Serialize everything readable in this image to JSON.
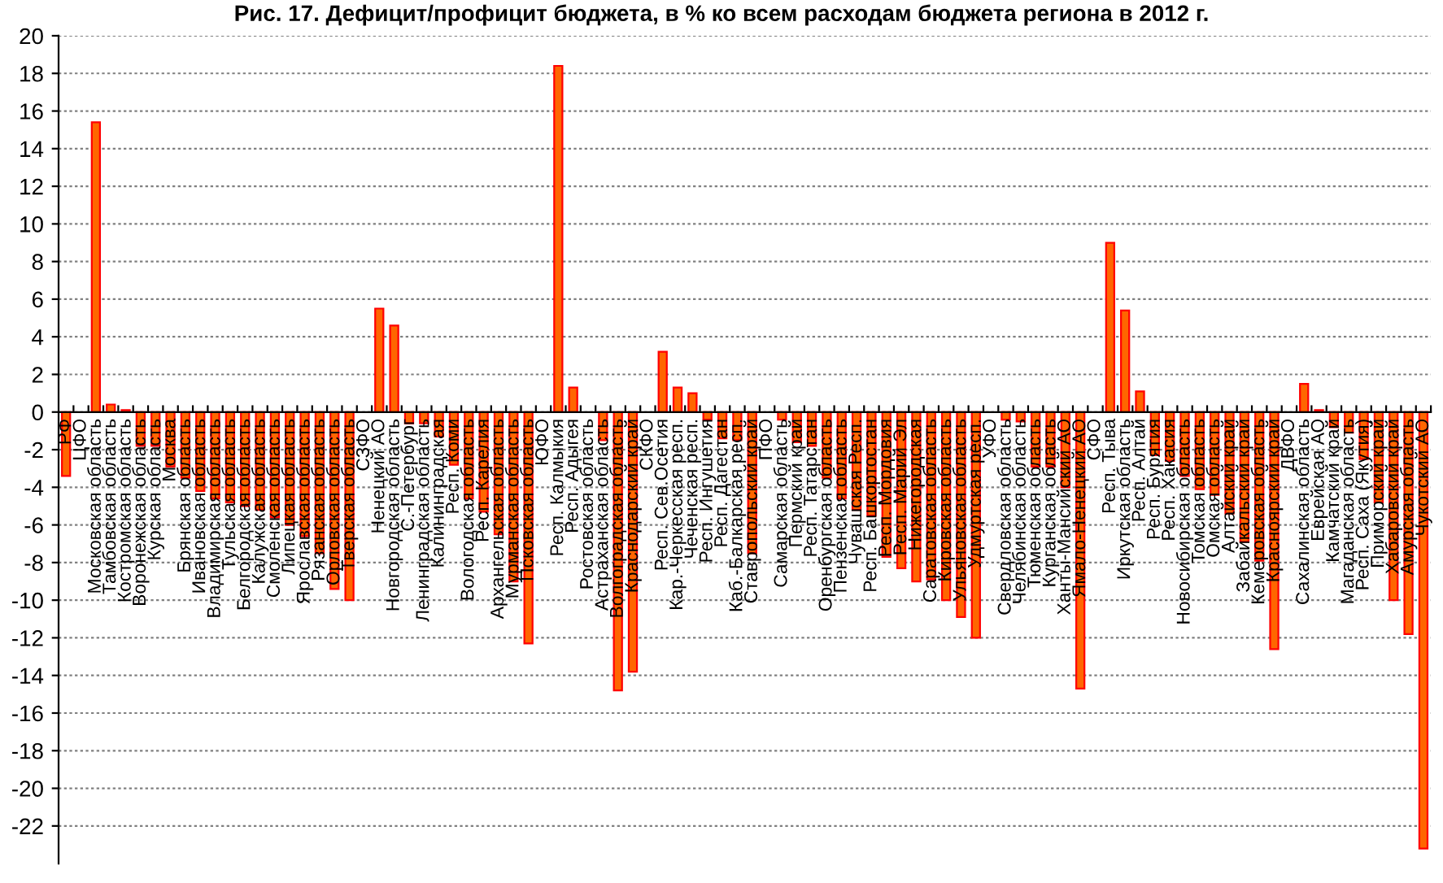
{
  "chart_data": {
    "type": "bar",
    "title": "Рис. 17. Дефицит/профицит бюджета, в % ко всем расходам бюджета региона в 2012 г.",
    "categories": [
      "РФ",
      "ЦФО",
      "Московская область",
      "Тамбовская область",
      "Костромская область",
      "Воронежская область",
      "Курская область",
      "Москва",
      "Брянская область",
      "Ивановская область",
      "Владимирская область",
      "Тульская область",
      "Белгородская область",
      "Калужская область",
      "Смоленская область",
      "Липецкая область",
      "Ярославская область",
      "Рязанская область",
      "Орловская область",
      "Тверская область",
      "СЗФО",
      "Ненецкий АО",
      "Новгородская область",
      "С.-Петербург",
      "Ленинградская область",
      "Калининградская",
      "Респ. Коми",
      "Вологодская область",
      "Респ. Карелия",
      "Архангельская область",
      "Мурманская область",
      "Псковская область",
      "ЮФО",
      "Респ. Калмыкия",
      "Респ. Адыгея",
      "Ростовская область",
      "Астраханская область",
      "Волгоградская область",
      "Краснодарский край",
      "СКФО",
      "Респ. Сев.Осетия",
      "Кар.-Черкесская респ.",
      "Чеченская респ.",
      "Респ. Ингушетия",
      "Респ. Дагестан",
      "Каб.-Балкарская респ.",
      "Ставропольский край",
      "ПФО",
      "Самарская область",
      "Пермский край",
      "Респ. Татарстан",
      "Оренбургская область",
      "Пензенская область",
      "Чувашская Респ.",
      "Респ. Башкортостан",
      "Респ. Мордовия",
      "Респ. Марий Эл",
      "Нижегородская",
      "Саратовская область",
      "Кировская область",
      "Ульяновская область",
      "Удмуртская респ.",
      "УФО",
      "Свердловская область",
      "Челябинская область",
      "Тюменская область",
      "Курганская область",
      "Ханты-Мансийский АО",
      "Ямало-Ненецкий АО",
      "СФО",
      "Респ. Тыва",
      "Иркутская область",
      "Респ. Алтай",
      "Респ. Бурятия",
      "Респ. Хакасия",
      "Новосибирская область",
      "Томская область",
      "Омская область",
      "Алтайский край",
      "Забайкальский край",
      "Кемеровская область",
      "Красноярский край",
      "ДВФО",
      "Сахалинская область",
      "Еврейская АО",
      "Камчатский край",
      "Магаданская область",
      "Респ. Саха (Якутия)",
      "Приморский край",
      "Хабаровский край",
      "Амурская область",
      "Чукотский АО"
    ],
    "values": [
      -3.4,
      null,
      15.4,
      0.4,
      0.1,
      -1.8,
      -1.8,
      -2.9,
      -3.5,
      -4.2,
      -4.6,
      -4.8,
      -5.0,
      -5.2,
      -5.6,
      -6.0,
      -6.6,
      -7.5,
      -9.4,
      -10.0,
      null,
      5.5,
      4.6,
      -0.6,
      -0.6,
      -1.3,
      -2.8,
      -4.6,
      -5.3,
      -6.5,
      -9.0,
      -12.3,
      null,
      18.4,
      1.3,
      null,
      -1.5,
      -14.8,
      -13.8,
      null,
      3.2,
      1.3,
      1.0,
      -0.4,
      -1.4,
      -1.5,
      -7.5,
      null,
      -0.4,
      -1.6,
      -1.8,
      -3.5,
      -4.6,
      -5.2,
      -5.5,
      -7.7,
      -8.3,
      -9.0,
      -8.9,
      -10.0,
      -10.9,
      -12.0,
      null,
      -0.4,
      -0.5,
      -2.9,
      -2.9,
      -4.0,
      -14.7,
      null,
      9.0,
      5.4,
      1.1,
      -2.3,
      -2.6,
      -3.4,
      -4.1,
      -4.4,
      -5.4,
      -6.9,
      -7.9,
      -12.6,
      null,
      1.5,
      0.1,
      -0.8,
      -1.1,
      -2.5,
      -4.8,
      -10.0,
      -11.8,
      -23.2
    ],
    "color": "#ff6600",
    "ylim": [
      -24,
      20
    ],
    "yticks": [
      -22,
      -20,
      -18,
      -16,
      -14,
      -12,
      -10,
      -8,
      -6,
      -4,
      -2,
      0,
      2,
      4,
      6,
      8,
      10,
      12,
      14,
      16,
      18,
      20
    ],
    "grid": "y",
    "legend": false
  }
}
